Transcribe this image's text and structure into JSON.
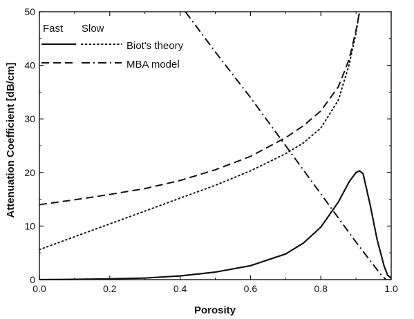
{
  "chart_data": {
    "type": "line",
    "title": "",
    "xlabel": "Porosity",
    "ylabel": "Attenuation Coefficient [dB/cm]",
    "xlim": [
      0.0,
      1.0
    ],
    "ylim": [
      0,
      50
    ],
    "x_ticks": [
      0.0,
      0.2,
      0.4,
      0.6,
      0.8,
      1.0
    ],
    "x_tick_labels": [
      "0.0",
      "0.2",
      "0.4",
      "0.6",
      "0.8",
      "1.0"
    ],
    "y_ticks": [
      0,
      10,
      20,
      30,
      40,
      50
    ],
    "y_tick_labels": [
      "0",
      "10",
      "20",
      "30",
      "40",
      "50"
    ],
    "grid": false,
    "legend": {
      "placement": "top-left",
      "header_fast": "Fast",
      "header_slow": "Slow",
      "rows": [
        {
          "label": "Biot's theory",
          "fast_style": "solid",
          "slow_style": "dotted"
        },
        {
          "label": "MBA model",
          "fast_style": "dashed",
          "slow_style": "dashdot"
        }
      ]
    },
    "series": [
      {
        "name": "Biot's theory (Fast)",
        "style": "solid",
        "x": [
          0.0,
          0.1,
          0.2,
          0.3,
          0.4,
          0.5,
          0.6,
          0.7,
          0.75,
          0.8,
          0.85,
          0.88,
          0.9,
          0.91,
          0.92,
          0.94,
          0.96,
          0.98,
          0.99,
          1.0
        ],
        "y": [
          0.0,
          0.05,
          0.15,
          0.3,
          0.7,
          1.4,
          2.6,
          4.8,
          6.8,
          9.8,
          14.5,
          18.2,
          20.0,
          20.3,
          19.8,
          14.0,
          7.5,
          2.5,
          0.8,
          0.3
        ]
      },
      {
        "name": "Biot's theory (Slow)",
        "style": "dotted",
        "x": [
          0.0,
          0.05,
          0.1,
          0.2,
          0.3,
          0.4,
          0.5,
          0.6,
          0.7,
          0.75,
          0.8,
          0.85,
          0.88,
          0.9,
          0.91
        ],
        "y": [
          5.6,
          6.8,
          8.0,
          10.4,
          12.8,
          15.2,
          17.6,
          20.3,
          23.5,
          25.5,
          28.3,
          33.5,
          40.0,
          46.0,
          50.0
        ]
      },
      {
        "name": "MBA model (Fast)",
        "style": "dashed",
        "x": [
          0.0,
          0.1,
          0.2,
          0.3,
          0.4,
          0.5,
          0.6,
          0.7,
          0.75,
          0.8,
          0.85,
          0.88,
          0.9,
          0.91
        ],
        "y": [
          14.0,
          14.9,
          15.9,
          17.0,
          18.5,
          20.5,
          23.0,
          26.5,
          28.7,
          31.5,
          36.0,
          41.0,
          46.5,
          50.0
        ]
      },
      {
        "name": "MBA model (Slow)",
        "style": "dashdot",
        "x": [
          0.415,
          0.5,
          0.6,
          0.7,
          0.8,
          0.9,
          0.97,
          0.985
        ],
        "y": [
          50.0,
          42.5,
          34.0,
          25.0,
          16.0,
          7.0,
          1.0,
          0.0
        ]
      }
    ]
  }
}
